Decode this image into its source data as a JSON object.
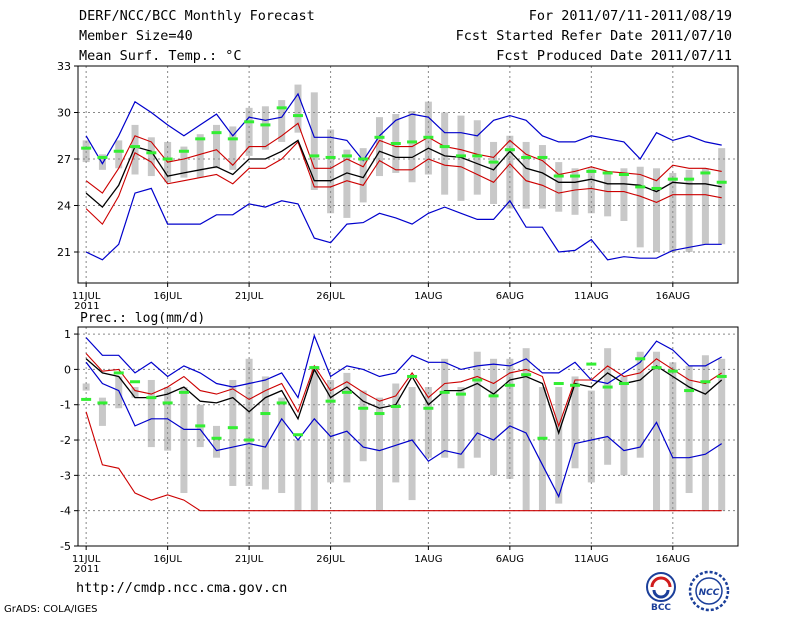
{
  "header": {
    "title": "DERF/NCC/BCC Monthly Forecast",
    "member_size": "Member Size=40",
    "variable": "Mean Surf. Temp.: °C",
    "period": "For 2011/07/11-2011/08/19",
    "fcst_started": "Fcst Started Refer Date 2011/07/10",
    "fcst_produced": "Fcst Produced Date 2011/07/11"
  },
  "footer": {
    "url": "http://cmdp.ncc.cma.gov.cn",
    "credit": "GrADS: COLA/IGES"
  },
  "logos": [
    {
      "name": "bcc-logo",
      "text": "BCC"
    },
    {
      "name": "ncc-logo",
      "text": "NCC"
    }
  ],
  "colors": {
    "box": "#c8c8c8",
    "max_min": "#0000cc",
    "percentile": "#cc0000",
    "mean": "#000000",
    "obs": "#33ee33",
    "grid": "#888888"
  },
  "chart_data": [
    {
      "type": "box-line",
      "title": "Mean Surf. Temp.: °C",
      "x_tick_labels": [
        "11JUL",
        "16JUL",
        "21JUL",
        "26JUL",
        "1AUG",
        "6AUG",
        "11AUG",
        "16AUG"
      ],
      "x_tick_days": [
        1,
        6,
        11,
        16,
        22,
        27,
        32,
        37
      ],
      "x_sub_label": "2011",
      "ylim": [
        19,
        33
      ],
      "y_ticks": [
        21,
        24,
        27,
        30,
        33
      ],
      "days": 40,
      "series": [
        {
          "name": "max",
          "values": [
            21,
            20.5,
            21.5,
            24.8,
            25.1,
            22.8,
            22.8,
            22.8,
            23.4,
            23.4,
            24.1,
            23.9,
            24.3,
            24.1,
            21.9,
            21.6,
            22.8,
            22.9,
            23.5,
            23.2,
            22.8,
            23.5,
            23.9,
            23.5,
            23.1,
            23.1,
            24.3,
            22.6,
            22.6,
            21,
            21.1,
            21.8,
            20.5,
            20.7,
            20.6,
            20.6,
            21.1,
            21.3,
            21.5,
            21.5
          ]
        },
        {
          "name": "p25",
          "values": [
            23.8,
            22.8,
            24.6,
            27.4,
            26.8,
            25.4,
            25.6,
            25.8,
            26,
            25.4,
            26.4,
            26.4,
            27,
            28.1,
            25.2,
            25.2,
            25.6,
            25.3,
            26.9,
            26.3,
            26.3,
            27,
            26.6,
            26.5,
            26,
            25.5,
            26.7,
            25.6,
            25.3,
            24.8,
            25,
            25.1,
            24.9,
            24.9,
            24.6,
            24.2,
            24.7,
            24.7,
            24.7,
            24.5
          ]
        },
        {
          "name": "mean",
          "values": [
            24.8,
            23.9,
            25.3,
            27.8,
            27.5,
            25.9,
            26.1,
            26.3,
            26.5,
            26,
            27,
            27,
            27.5,
            28.2,
            25.6,
            25.6,
            26.1,
            25.8,
            27.5,
            27.1,
            27.1,
            27.7,
            27.2,
            27.1,
            26.7,
            26.3,
            27.5,
            26.4,
            26.1,
            25.5,
            25.5,
            25.7,
            25.4,
            25.4,
            25.3,
            24.9,
            25.5,
            25.4,
            25.4,
            25.2
          ]
        },
        {
          "name": "p75",
          "values": [
            25.6,
            24.8,
            26.4,
            28.5,
            28.1,
            26.8,
            27,
            27.3,
            27.6,
            26.6,
            27.8,
            27.8,
            28.5,
            29.3,
            26.4,
            26.4,
            27,
            26.5,
            28.2,
            27.8,
            27.8,
            28.4,
            27.8,
            27.6,
            27.3,
            27.1,
            28.2,
            27.3,
            26.9,
            26,
            26.2,
            26.5,
            26.2,
            26.1,
            26,
            25.6,
            26.6,
            26.4,
            26.4,
            26.2
          ]
        },
        {
          "name": "min",
          "values": [
            28.5,
            26.7,
            28.5,
            30.7,
            30,
            29.2,
            28.5,
            29.2,
            29.9,
            28.5,
            29.7,
            29.5,
            29.7,
            31.2,
            28.4,
            28.4,
            28.2,
            26.9,
            28.5,
            29.5,
            29.9,
            29.7,
            28.7,
            28.7,
            28.5,
            29.5,
            29.8,
            29.5,
            28.5,
            28.1,
            28.1,
            28.5,
            28.3,
            28.1,
            27,
            28.7,
            28.2,
            28.5,
            28.1,
            27.9
          ]
        },
        {
          "name": "box_low",
          "values": [
            26.8,
            26.3,
            26.4,
            26,
            25.9,
            25.5,
            25.8,
            25.8,
            26.4,
            26.3,
            27.2,
            27.6,
            28.1,
            28.7,
            25,
            23.5,
            23.2,
            24.2,
            25.9,
            26.1,
            25.5,
            26,
            24.7,
            24.3,
            24.7,
            24.1,
            23.8,
            23.8,
            23.8,
            23.6,
            23.4,
            23.5,
            23.3,
            23,
            21.3,
            21,
            21,
            21,
            21.5,
            21.5
          ]
        },
        {
          "name": "box_high",
          "values": [
            28.2,
            27.3,
            28.2,
            29.2,
            28.4,
            28.1,
            27.8,
            28.6,
            29.2,
            29.1,
            30.3,
            30.4,
            30.8,
            31.8,
            31.3,
            28.9,
            27.6,
            27.7,
            29.7,
            29.9,
            30.1,
            30.7,
            30,
            29.8,
            29.5,
            28.1,
            28.5,
            28.1,
            27.9,
            26.8,
            26.4,
            26.4,
            26.2,
            26.4,
            26.5,
            26.4,
            26.1,
            26.3,
            26.4,
            27.7
          ]
        },
        {
          "name": "observed",
          "values": [
            27.7,
            27.1,
            27.5,
            27.8,
            27.4,
            27,
            27.5,
            28.3,
            28.7,
            28.3,
            29.4,
            29.2,
            30.3,
            29.8,
            27.2,
            27.1,
            27.2,
            27,
            28.4,
            28,
            28.1,
            28.4,
            27.8,
            27.2,
            27.2,
            26.8,
            27.6,
            27.1,
            27.1,
            25.9,
            25.9,
            26.2,
            26.1,
            26,
            25.2,
            25.1,
            25.7,
            25.7,
            26.1,
            25.5
          ]
        }
      ]
    },
    {
      "type": "box-line",
      "title": "Prec.: log(mm/d)",
      "x_tick_labels": [
        "11JUL",
        "16JUL",
        "21JUL",
        "26JUL",
        "1AUG",
        "6AUG",
        "11AUG",
        "16AUG"
      ],
      "x_tick_days": [
        1,
        6,
        11,
        16,
        22,
        27,
        32,
        37
      ],
      "x_sub_label": "2011",
      "ylim": [
        -5,
        1.2
      ],
      "y_ticks": [
        -5,
        -4,
        -3,
        -2,
        -1,
        0,
        1
      ],
      "days": 40,
      "series": [
        {
          "name": "max",
          "values": [
            0.9,
            0.4,
            0.4,
            -0.1,
            0.2,
            -0.2,
            0.1,
            -0.1,
            -0.4,
            -0.5,
            -0.4,
            -0.3,
            -0.1,
            -0.8,
            0.95,
            -0.2,
            0.1,
            0,
            -0.2,
            -0.1,
            0.4,
            0.2,
            0.2,
            0,
            0.1,
            0.15,
            0.1,
            0.3,
            -0.1,
            -0.1,
            0.2,
            -0.3,
            -0.4,
            -0.1,
            0.2,
            0.8,
            0.55,
            0.1,
            0.1,
            0.35
          ]
        },
        {
          "name": "p25",
          "values": [
            -1.2,
            -2.7,
            -2.8,
            -3.5,
            -3.7,
            -3.55,
            -3.7,
            -4,
            -4,
            -4,
            -4,
            -4,
            -4,
            -4,
            -4,
            -4,
            -4,
            -4,
            -4,
            -4,
            -4,
            -4,
            -4,
            -4,
            -4,
            -4,
            -4,
            -4,
            -4,
            -4,
            -4,
            -4,
            -4,
            -4,
            -4,
            -4,
            -4,
            -4,
            -4,
            -4
          ]
        },
        {
          "name": "mean",
          "values": [
            0.3,
            -0.1,
            -0.2,
            -0.8,
            -0.8,
            -0.7,
            -0.5,
            -0.9,
            -0.95,
            -0.8,
            -1.2,
            -0.8,
            -0.6,
            -1.4,
            0,
            -0.8,
            -0.5,
            -0.9,
            -1.1,
            -1,
            -0.2,
            -1,
            -0.6,
            -0.6,
            -0.4,
            -0.7,
            -0.3,
            -0.2,
            -0.4,
            -1.8,
            -0.4,
            -0.5,
            -0.1,
            -0.4,
            -0.3,
            0.1,
            -0.2,
            -0.5,
            -0.7,
            -0.3
          ]
        },
        {
          "name": "p75",
          "values": [
            0.45,
            -0.05,
            0,
            -0.6,
            -0.7,
            -0.5,
            -0.2,
            -0.6,
            -0.7,
            -0.55,
            -0.85,
            -0.6,
            -0.4,
            -1.2,
            0.1,
            -0.6,
            -0.35,
            -0.65,
            -0.9,
            -0.75,
            -0.1,
            -0.8,
            -0.4,
            -0.35,
            -0.2,
            -0.4,
            -0.1,
            0,
            -0.2,
            -1.6,
            -0.3,
            -0.3,
            0.1,
            -0.2,
            -0.1,
            0.3,
            0,
            -0.3,
            -0.4,
            -0.1
          ]
        },
        {
          "name": "min",
          "values": [
            0.2,
            -0.4,
            -0.6,
            -1.6,
            -1.4,
            -1.4,
            -1.7,
            -1.7,
            -2.3,
            -2.2,
            -2.1,
            -2.2,
            -1.4,
            -2,
            -1.4,
            -1.9,
            -1.75,
            -2.2,
            -2.3,
            -2.15,
            -2,
            -2.6,
            -2.3,
            -2.4,
            -1.8,
            -2,
            -1.6,
            -1.8,
            -2.7,
            -3.6,
            -2.1,
            -2,
            -1.9,
            -2.3,
            -2.2,
            -1.5,
            -2.5,
            -2.5,
            -2.4,
            -2.1
          ]
        },
        {
          "name": "box_low",
          "values": [
            -0.4,
            -1.6,
            -1.1,
            -0.8,
            -2.2,
            -2.3,
            -3.5,
            -2.2,
            -2.5,
            -3.3,
            -3.3,
            -3.4,
            -3.5,
            -4,
            -4,
            -3.2,
            -3.2,
            -2.6,
            -4,
            -3.2,
            -3.7,
            -2.5,
            -2.5,
            -2.8,
            -2.5,
            -3,
            -3.1,
            -4,
            -4,
            -3.8,
            -2.8,
            -3.2,
            -2.7,
            -3,
            -2.5,
            -4,
            -4,
            -3.5,
            -4,
            -4
          ]
        },
        {
          "name": "box_high",
          "values": [
            -0.6,
            -0.8,
            -0.2,
            -0.5,
            -0.3,
            -0.5,
            -0.5,
            -1,
            -1.6,
            -0.3,
            0.3,
            -0.2,
            -0.8,
            -2,
            0.1,
            -0.3,
            -0.1,
            -0.6,
            -0.8,
            -0.4,
            -0.5,
            -0.5,
            0.3,
            -0.5,
            0.5,
            0.3,
            0.3,
            0.6,
            -0.5,
            -0.5,
            -0.2,
            -0.6,
            0.6,
            -0.2,
            0.5,
            0.5,
            0.2,
            0.1,
            0.4,
            0.3
          ]
        },
        {
          "name": "observed",
          "values": [
            -0.85,
            -0.95,
            -0.1,
            -0.35,
            -0.8,
            -0.95,
            -0.65,
            -1.6,
            -1.95,
            -1.65,
            -2,
            -1.25,
            -0.95,
            -1.85,
            0.05,
            -0.9,
            -0.65,
            -1.1,
            -1.25,
            -1.05,
            -0.2,
            -1.1,
            -0.65,
            -0.7,
            -0.3,
            -0.75,
            -0.45,
            -0.15,
            -1.95,
            -0.4,
            -0.45,
            0.15,
            -0.5,
            -0.4,
            0.3,
            0.05,
            -0.05,
            -0.6,
            -0.35,
            -0.2
          ]
        }
      ]
    }
  ]
}
